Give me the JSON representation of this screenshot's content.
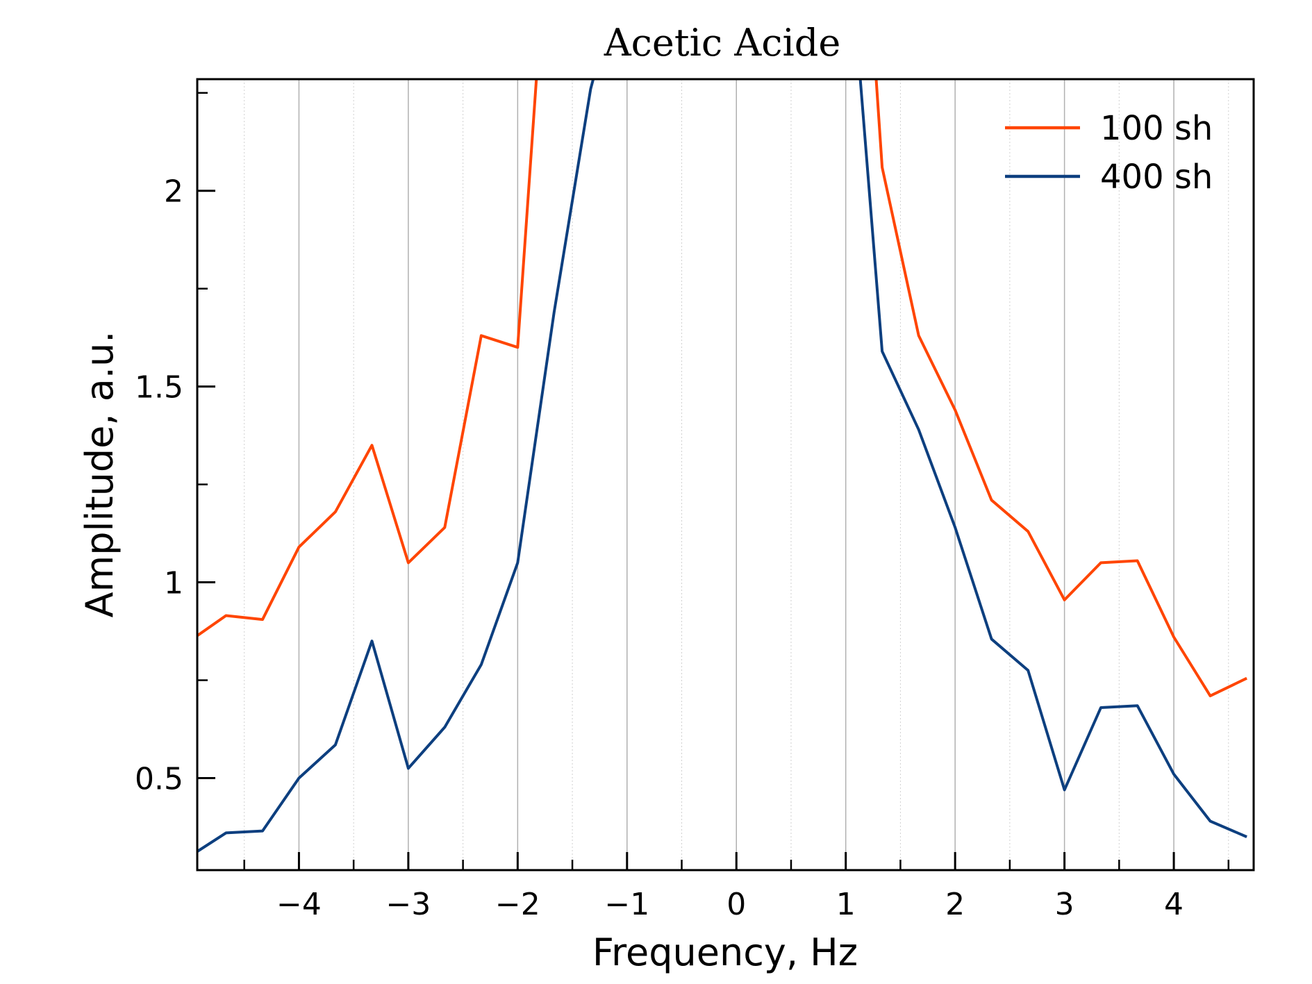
{
  "chart_data": {
    "type": "line",
    "title": "Acetic Acide",
    "xlabel": "Frequency, Hz",
    "ylabel": "Amplitude, a.u.",
    "xlim": [
      -4.93,
      4.73
    ],
    "ylim": [
      0.265,
      2.285
    ],
    "x_major_ticks": [
      -4,
      -3,
      -2,
      -1,
      0,
      1,
      2,
      3,
      4
    ],
    "x_major_tick_labels": [
      "−4",
      "−3",
      "−2",
      "−1",
      "0",
      "1",
      "2",
      "3",
      "4"
    ],
    "x_minor_ticks": [
      -4.5,
      -3.5,
      -2.5,
      -1.5,
      -0.5,
      0.5,
      1.5,
      2.5,
      3.5,
      4.5
    ],
    "y_major_ticks": [
      0.5,
      1.0,
      1.5,
      2.0
    ],
    "y_major_tick_labels": [
      "0.5",
      "1",
      "1.5",
      "2"
    ],
    "y_minor_ticks": [
      0.75,
      1.25,
      1.75,
      2.25
    ],
    "grid": "vertical",
    "legend_position": "top-right",
    "series": [
      {
        "name": "100 sh",
        "color": "#ff4500",
        "x": [
          -5.0,
          -4.667,
          -4.333,
          -4.0,
          -3.667,
          -3.333,
          -3.0,
          -2.667,
          -2.333,
          -2.0,
          -1.8,
          1.25,
          1.333,
          1.667,
          2.0,
          2.333,
          2.667,
          3.0,
          3.333,
          3.667,
          4.0,
          4.333,
          4.667
        ],
        "values": [
          0.85,
          0.915,
          0.905,
          1.09,
          1.18,
          1.35,
          1.05,
          1.14,
          1.63,
          1.6,
          2.4,
          2.4,
          2.06,
          1.63,
          1.44,
          1.21,
          1.13,
          0.955,
          1.05,
          1.055,
          0.86,
          0.71,
          0.755
        ]
      },
      {
        "name": "400 sh",
        "color": "#0d3f7f",
        "x": [
          -5.0,
          -4.667,
          -4.333,
          -4.0,
          -3.667,
          -3.333,
          -3.0,
          -2.667,
          -2.333,
          -2.0,
          -1.667,
          -1.333,
          -1.2,
          1.1,
          1.333,
          1.667,
          2.0,
          2.333,
          2.667,
          3.0,
          3.333,
          3.667,
          4.0,
          4.333,
          4.667
        ],
        "values": [
          0.3,
          0.36,
          0.365,
          0.5,
          0.585,
          0.85,
          0.525,
          0.63,
          0.79,
          1.05,
          1.69,
          2.26,
          2.4,
          2.4,
          1.59,
          1.39,
          1.14,
          0.855,
          0.775,
          0.47,
          0.68,
          0.685,
          0.51,
          0.39,
          0.35
        ]
      }
    ]
  }
}
